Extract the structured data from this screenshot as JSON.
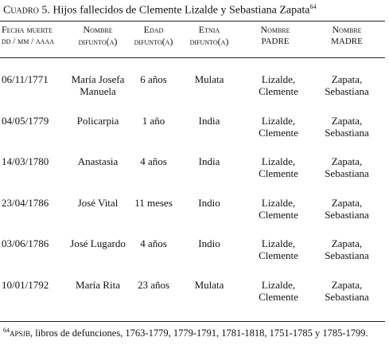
{
  "title": {
    "label": "Cuadro 5.",
    "text": "Hijos fallecidos de Clemente Lizalde y Sebastiana Zapata",
    "note": "64"
  },
  "table": {
    "headers": [
      [
        "Fecha muerte",
        "dd / mm / aaaa"
      ],
      [
        "Nombre",
        "difunto(a)"
      ],
      [
        "Edad",
        "difunto(a)"
      ],
      [
        "Etnia",
        "difunto(a)"
      ],
      [
        "Nombre",
        "padre"
      ],
      [
        "Nombre",
        "madre"
      ]
    ],
    "rows": [
      [
        "06/11/1771",
        "María Josefa Manuela",
        "6 años",
        "Mulata",
        "Lizalde, Clemente",
        "Zapata, Sebastiana"
      ],
      [
        "04/05/1779",
        "Policarpia",
        "1 año",
        "India",
        "Lizalde, Clemente",
        "Zapata, Sebastiana"
      ],
      [
        "14/03/1780",
        "Anastasia",
        "4 años",
        "India",
        "Lizalde, Clemente",
        "Zapata, Sebastiana"
      ],
      [
        "23/04/1786",
        "José Vital",
        "11 meses",
        "Indio",
        "Lizalde, Clemente",
        "Zapata, Sebastiana"
      ],
      [
        "03/06/1786",
        "José Lugardo",
        "4 años",
        "Indio",
        "Lizalde, Clemente",
        "Zapata, Sebastiana"
      ],
      [
        "10/01/1792",
        "María Rita",
        "23 años",
        "Mulata",
        "Lizalde, Clemente",
        "Zapata, Sebastiana"
      ]
    ]
  },
  "footnote": {
    "marker": "64",
    "source": "apsjb",
    "text": ", libros de defunciones, 1763-1779, 1779-1791, 1781-1818, 1751-1785 y 1785-1799."
  }
}
